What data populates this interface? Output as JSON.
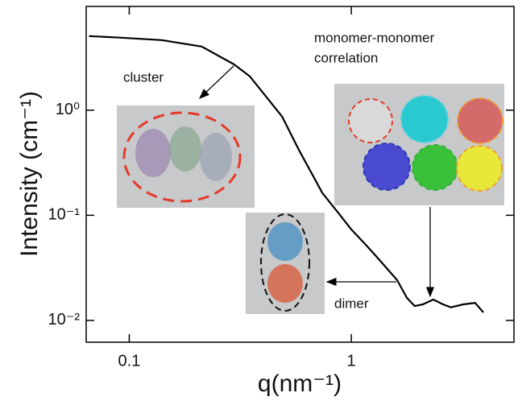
{
  "chart_data": {
    "type": "line",
    "x": [
      0.0659,
      0.092,
      0.14,
      0.212,
      0.296,
      0.349,
      0.413,
      0.488,
      0.577,
      0.741,
      0.875,
      1,
      1.17,
      1.33,
      1.61,
      1.78,
      1.93,
      2.1,
      2.34,
      2.59,
      2.81,
      3.19,
      3.61,
      3.93
    ],
    "values": [
      5.07,
      4.89,
      4.64,
      4.03,
      2.73,
      2.1,
      1.35,
      0.868,
      0.429,
      0.163,
      0.105,
      0.0734,
      0.0516,
      0.0382,
      0.0241,
      0.0164,
      0.0137,
      0.0142,
      0.0158,
      0.0142,
      0.0133,
      0.0142,
      0.0147,
      0.0119
    ],
    "color": "#000000",
    "xlog": true,
    "ylog": true,
    "xlim": [
      0.064,
      5.4
    ],
    "ylim": [
      0.0062,
      9.7
    ],
    "xticks": [
      0.1,
      1
    ],
    "yticks": [
      {
        "value": 1,
        "label": "10⁰"
      },
      {
        "value": 0.1,
        "label": "10⁻¹"
      },
      {
        "value": 0.01,
        "label": "10⁻²"
      }
    ],
    "xlabel": "q(nm⁻¹)",
    "ylabel": "Intensity (cm⁻¹)",
    "annotations": [
      "cluster",
      "monomer-monomer",
      "correlation",
      "dimer"
    ]
  }
}
